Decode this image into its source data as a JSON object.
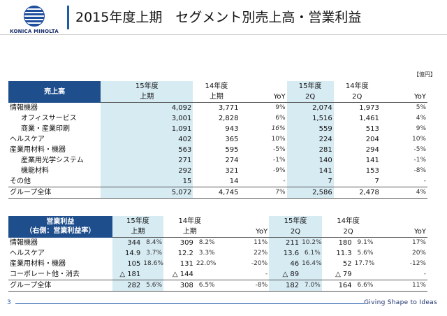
{
  "brand": "KONICA MINOLTA",
  "title": "2015年度上期　セグメント別売上高・営業利益",
  "unit": "【億円】",
  "sales": {
    "header_label": "売上高",
    "col_h1": [
      "15年度",
      "14年度",
      "",
      "15年度",
      "14年度",
      ""
    ],
    "col_h2": [
      "上期",
      "上期",
      "YoY",
      "2Q",
      "2Q",
      "YoY"
    ],
    "rows": [
      {
        "label": "情報機器",
        "v": [
          "4,092",
          "3,771",
          "9%",
          "2,074",
          "1,973",
          "5%"
        ],
        "indent": false
      },
      {
        "label": "オフィスサービス",
        "v": [
          "3,001",
          "2,828",
          "6%",
          "1,516",
          "1,461",
          "4%"
        ],
        "indent": true
      },
      {
        "label": "商業・産業印刷",
        "v": [
          "1,091",
          "943",
          "16%",
          "559",
          "513",
          "9%"
        ],
        "indent": true,
        "italic_yoy": true
      },
      {
        "label": "ヘルスケア",
        "v": [
          "402",
          "365",
          "10%",
          "224",
          "204",
          "10%"
        ],
        "indent": false
      },
      {
        "label": "産業用材料・機器",
        "v": [
          "563",
          "595",
          "-5%",
          "281",
          "294",
          "-5%"
        ],
        "indent": false
      },
      {
        "label": "産業用光学システム",
        "v": [
          "271",
          "274",
          "-1%",
          "140",
          "141",
          "-1%"
        ],
        "indent": true
      },
      {
        "label": "機能材料",
        "v": [
          "292",
          "321",
          "-9%",
          "141",
          "153",
          "-8%"
        ],
        "indent": true
      },
      {
        "label": "その他",
        "v": [
          "15",
          "14",
          "-",
          "7",
          "7",
          "-"
        ],
        "indent": false
      }
    ],
    "total": {
      "label": "グループ全体",
      "v": [
        "5,072",
        "4,745",
        "7%",
        "2,586",
        "2,478",
        "4%"
      ]
    }
  },
  "profit": {
    "header_line1": "営業利益",
    "header_line2": "（右側：営業利益率）",
    "col_h1": [
      "15年度",
      "14年度",
      "",
      "15年度",
      "14年度",
      ""
    ],
    "col_h2": [
      "上期",
      "上期",
      "YoY",
      "2Q",
      "2Q",
      "YoY"
    ],
    "rows": [
      {
        "label": "情報機器",
        "a": "344",
        "ap": "8.4%",
        "b": "309",
        "bp": "8.2%",
        "y1": "11%",
        "c": "211",
        "cp": "10.2%",
        "d": "180",
        "dp": "9.1%",
        "y2": "17%"
      },
      {
        "label": "ヘルスケア",
        "a": "14.9",
        "ap": "3.7%",
        "b": "12.2",
        "bp": "3.3%",
        "y1": "22%",
        "c": "13.6",
        "cp": "6.1%",
        "d": "11.3",
        "dp": "5.6%",
        "y2": "20%"
      },
      {
        "label": "産業用材料・機器",
        "a": "105",
        "ap": "18.6%",
        "b": "131",
        "bp": "22.0%",
        "y1": "-20%",
        "c": "46",
        "cp": "16.4%",
        "d": "52",
        "dp": "17.7%",
        "y2": "-12%"
      },
      {
        "label": "コーポレート他・消去",
        "a": "△ 181",
        "ap": "",
        "b": "△ 144",
        "bp": "",
        "y1": "-",
        "c": "△ 89",
        "cp": "",
        "d": "△ 79",
        "dp": "",
        "y2": "-"
      }
    ],
    "total": {
      "label": "グループ全体",
      "a": "282",
      "ap": "5.6%",
      "b": "308",
      "bp": "6.5%",
      "y1": "-8%",
      "c": "182",
      "cp": "7.0%",
      "d": "164",
      "dp": "6.6%",
      "y2": "11%"
    }
  },
  "footer": {
    "page": "3",
    "slogan": "Giving Shape to Ideas"
  }
}
